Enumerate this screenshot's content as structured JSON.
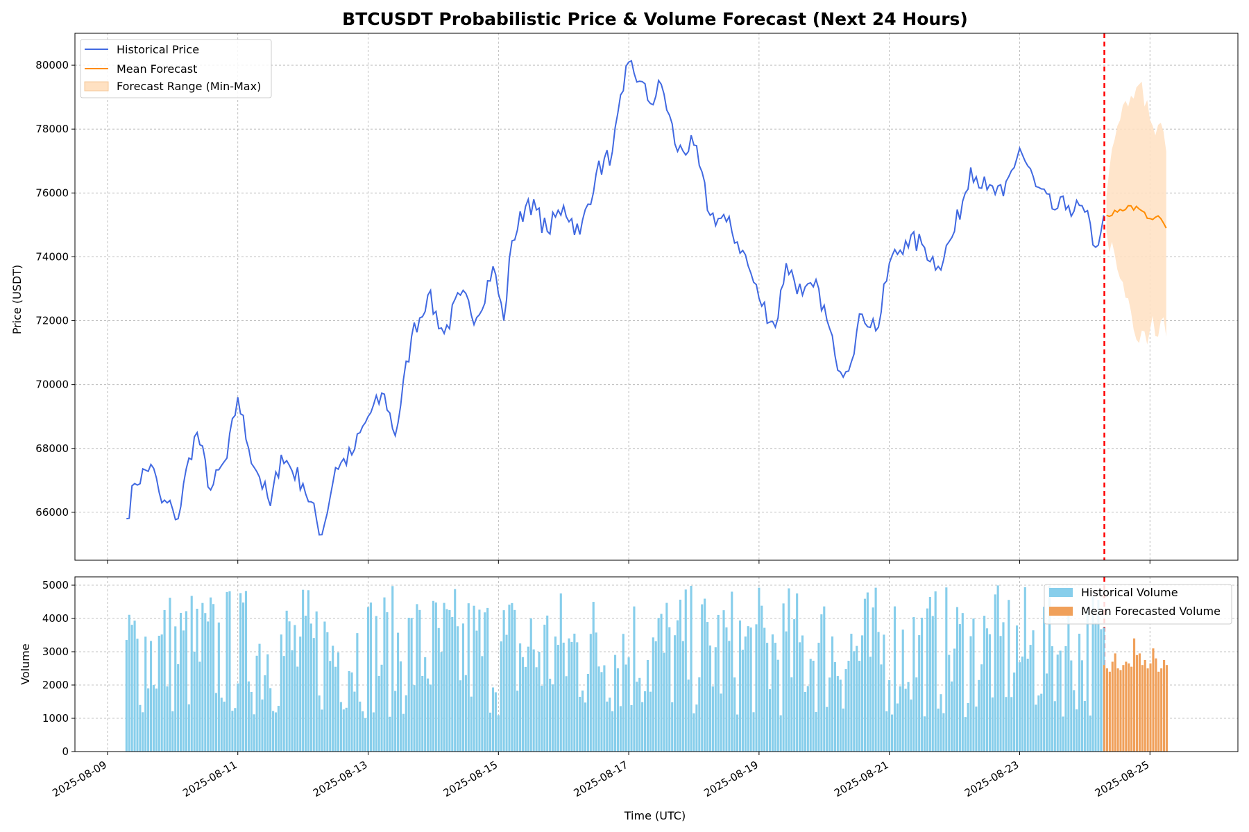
{
  "chart_data": {
    "title": "BTCUSDT Probabilistic Price & Volume Forecast (Next 24 Hours)",
    "xlabel": "Time (UTC)",
    "x_tick_labels": [
      "2025-08-09",
      "2025-08-11",
      "2025-08-13",
      "2025-08-15",
      "2025-08-17",
      "2025-08-19",
      "2025-08-21",
      "2025-08-23",
      "2025-08-25"
    ],
    "x_range_days": [
      0,
      17.0
    ],
    "forecast_start_day": 15.3,
    "colors": {
      "historical_price": "#4169e1",
      "mean_forecast": "#ff8c00",
      "forecast_range": "#ffe1c2",
      "forecast_start_line": "#ff0000",
      "historical_volume": "#87ceeb",
      "forecasted_volume": "#f0a05a"
    },
    "price_panel": {
      "type": "line",
      "ylabel": "Price (USDT)",
      "ylim": [
        64500,
        81000
      ],
      "y_ticks": [
        66000,
        68000,
        70000,
        72000,
        74000,
        76000,
        78000,
        80000
      ],
      "grid": true,
      "legend_position": "top-left",
      "legend": [
        "Historical Price",
        "Mean Forecast",
        "Forecast Range (Min-Max)"
      ],
      "historical_anchors": [
        [
          "2025-08-09 07:00",
          65800
        ],
        [
          "2025-08-09 10:00",
          66900
        ],
        [
          "2025-08-09 16:00",
          67500
        ],
        [
          "2025-08-09 20:00",
          66300
        ],
        [
          "2025-08-10 00:00",
          66100
        ],
        [
          "2025-08-10 02:00",
          65800
        ],
        [
          "2025-08-10 06:00",
          67700
        ],
        [
          "2025-08-10 09:00",
          68500
        ],
        [
          "2025-08-10 14:00",
          66700
        ],
        [
          "2025-08-10 20:00",
          67700
        ],
        [
          "2025-08-11 00:00",
          69600
        ],
        [
          "2025-08-11 04:00",
          68000
        ],
        [
          "2025-08-11 08:00",
          67100
        ],
        [
          "2025-08-11 12:00",
          66200
        ],
        [
          "2025-08-11 16:00",
          67800
        ],
        [
          "2025-08-12 00:00",
          66900
        ],
        [
          "2025-08-12 07:00",
          65300
        ],
        [
          "2025-08-12 12:00",
          67400
        ],
        [
          "2025-08-12 18:00",
          67800
        ],
        [
          "2025-08-13 00:00",
          69000
        ],
        [
          "2025-08-13 06:00",
          69700
        ],
        [
          "2025-08-13 10:00",
          68400
        ],
        [
          "2025-08-13 16:00",
          71500
        ],
        [
          "2025-08-13 22:00",
          72800
        ],
        [
          "2025-08-14 04:00",
          71600
        ],
        [
          "2025-08-14 10:00",
          72800
        ],
        [
          "2025-08-14 16:00",
          72100
        ],
        [
          "2025-08-14 22:00",
          73700
        ],
        [
          "2025-08-15 02:00",
          72000
        ],
        [
          "2025-08-15 05:00",
          74500
        ],
        [
          "2025-08-15 11:00",
          75800
        ],
        [
          "2025-08-15 18:00",
          74800
        ],
        [
          "2025-08-16 00:00",
          75600
        ],
        [
          "2025-08-16 06:00",
          74700
        ],
        [
          "2025-08-16 12:00",
          76600
        ],
        [
          "2025-08-16 18:00",
          77300
        ],
        [
          "2025-08-16 22:00",
          79200
        ],
        [
          "2025-08-17 00:00",
          80100
        ],
        [
          "2025-08-17 04:00",
          79500
        ],
        [
          "2025-08-17 08:00",
          78800
        ],
        [
          "2025-08-17 12:00",
          79400
        ],
        [
          "2025-08-17 18:00",
          77300
        ],
        [
          "2025-08-18 00:00",
          77500
        ],
        [
          "2025-08-18 06:00",
          75300
        ],
        [
          "2025-08-18 12:00",
          75100
        ],
        [
          "2025-08-18 18:00",
          74200
        ],
        [
          "2025-08-19 00:00",
          72700
        ],
        [
          "2025-08-19 06:00",
          71800
        ],
        [
          "2025-08-19 10:00",
          73800
        ],
        [
          "2025-08-19 16:00",
          72800
        ],
        [
          "2025-08-19 22:00",
          73000
        ],
        [
          "2025-08-20 04:00",
          70900
        ],
        [
          "2025-08-20 08:00",
          70400
        ],
        [
          "2025-08-20 14:00",
          72200
        ],
        [
          "2025-08-20 20:00",
          71800
        ],
        [
          "2025-08-21 00:00",
          73800
        ],
        [
          "2025-08-21 06:00",
          74500
        ],
        [
          "2025-08-21 12:00",
          74400
        ],
        [
          "2025-08-21 18:00",
          73700
        ],
        [
          "2025-08-22 00:00",
          74800
        ],
        [
          "2025-08-22 06:00",
          76800
        ],
        [
          "2025-08-22 12:00",
          76100
        ],
        [
          "2025-08-22 18:00",
          75900
        ],
        [
          "2025-08-23 00:00",
          77400
        ],
        [
          "2025-08-23 06:00",
          76200
        ],
        [
          "2025-08-23 12:00",
          75500
        ],
        [
          "2025-08-23 18:00",
          75600
        ],
        [
          "2025-08-24 00:00",
          75400
        ],
        [
          "2025-08-24 04:00",
          74300
        ],
        [
          "2025-08-24 06:00",
          74800
        ],
        [
          "2025-08-24 07:00",
          75300
        ]
      ],
      "mean_forecast_anchors": [
        [
          "2025-08-24 08:00",
          75300
        ],
        [
          "2025-08-24 12:00",
          75400
        ],
        [
          "2025-08-24 16:00",
          75600
        ],
        [
          "2025-08-24 20:00",
          75500
        ],
        [
          "2025-08-25 00:00",
          75200
        ],
        [
          "2025-08-25 04:00",
          75200
        ],
        [
          "2025-08-25 06:00",
          74900
        ]
      ],
      "forecast_range_anchors": [
        [
          "2025-08-24 08:00",
          75900,
          74800
        ],
        [
          "2025-08-24 12:00",
          78100,
          73600
        ],
        [
          "2025-08-24 16:00",
          78700,
          72700
        ],
        [
          "2025-08-24 20:00",
          79400,
          71300
        ],
        [
          "2025-08-25 00:00",
          78300,
          71700
        ],
        [
          "2025-08-25 04:00",
          78200,
          72000
        ],
        [
          "2025-08-25 06:00",
          77300,
          71500
        ]
      ]
    },
    "volume_panel": {
      "type": "bar",
      "ylabel": "Volume",
      "ylim": [
        0,
        5250
      ],
      "y_ticks": [
        0,
        1000,
        2000,
        3000,
        4000,
        5000
      ],
      "grid": true,
      "legend_position": "top-right",
      "legend": [
        "Historical Volume",
        "Mean Forecasted Volume"
      ],
      "historical_volume_range": [
        1000,
        5000
      ],
      "forecast_volume_values": [
        2600,
        2500,
        2400,
        2700,
        2950,
        2500,
        2450,
        2600,
        2700,
        2650,
        2550,
        3400,
        2900,
        2950,
        2600,
        2750,
        2500,
        2650,
        3100,
        2800,
        2400,
        2500,
        2750,
        2600
      ]
    }
  }
}
